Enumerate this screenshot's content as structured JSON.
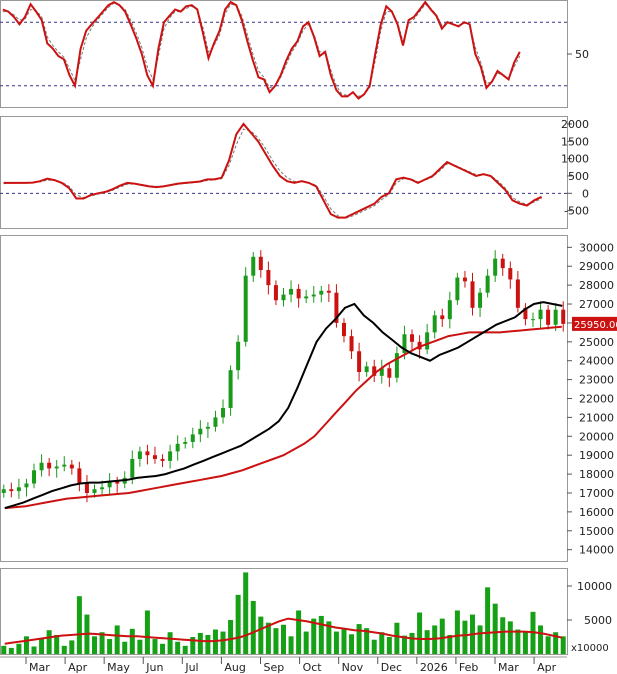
{
  "chart_data": [
    {
      "type": "line",
      "panel": "stochastic-oscillator",
      "ytick_labels": [
        "50"
      ],
      "reference_levels": [
        80,
        20
      ],
      "ylim": [
        0,
        100
      ],
      "series": [
        {
          "color": "#cc1111",
          "values": [
            92,
            90,
            85,
            78,
            85,
            97,
            90,
            82,
            60,
            55,
            48,
            45,
            30,
            20,
            55,
            72,
            78,
            84,
            90,
            96,
            99,
            96,
            90,
            78,
            65,
            50,
            30,
            20,
            55,
            80,
            86,
            92,
            90,
            95,
            96,
            92,
            70,
            46,
            60,
            72,
            92,
            99,
            96,
            82,
            62,
            44,
            28,
            26,
            14,
            20,
            30,
            44,
            55,
            62,
            76,
            80,
            66,
            48,
            52,
            30,
            16,
            10,
            10,
            14,
            8,
            12,
            20,
            50,
            78,
            95,
            90,
            78,
            58,
            82,
            85,
            92,
            99,
            92,
            86,
            74,
            80,
            78,
            76,
            80,
            78,
            50,
            38,
            18,
            24,
            34,
            30,
            26,
            42,
            52
          ]
        },
        {
          "color": "#777777",
          "values": [
            90,
            90,
            87,
            82,
            83,
            92,
            91,
            85,
            66,
            58,
            52,
            47,
            36,
            25,
            45,
            65,
            75,
            82,
            88,
            94,
            98,
            96,
            92,
            82,
            70,
            56,
            38,
            26,
            48,
            74,
            84,
            90,
            90,
            93,
            95,
            92,
            75,
            52,
            58,
            68,
            88,
            97,
            96,
            86,
            68,
            50,
            34,
            28,
            18,
            20,
            28,
            40,
            52,
            60,
            72,
            78,
            68,
            52,
            52,
            35,
            20,
            12,
            11,
            13,
            10,
            12,
            18,
            44,
            72,
            90,
            90,
            80,
            62,
            78,
            83,
            90,
            97,
            93,
            87,
            77,
            80,
            78,
            77,
            79,
            78,
            56,
            42,
            22,
            24,
            32,
            30,
            27,
            38,
            48
          ]
        }
      ]
    },
    {
      "type": "line",
      "panel": "macd",
      "yticks": [
        2000,
        1500,
        1000,
        500,
        0,
        -500
      ],
      "ylim": [
        -1000,
        2200
      ],
      "series": [
        {
          "color": "#cc1111",
          "values": [
            300,
            300,
            300,
            300,
            310,
            350,
            420,
            380,
            300,
            150,
            -150,
            -150,
            -50,
            0,
            40,
            120,
            220,
            300,
            280,
            240,
            200,
            180,
            200,
            240,
            280,
            300,
            320,
            340,
            400,
            400,
            450,
            950,
            1700,
            2000,
            1750,
            1500,
            1150,
            800,
            500,
            350,
            300,
            350,
            300,
            200,
            -200,
            -600,
            -700,
            -700,
            -600,
            -500,
            -400,
            -300,
            -100,
            0,
            400,
            450,
            400,
            300,
            400,
            500,
            700,
            900,
            800,
            700,
            600,
            500,
            550,
            500,
            300,
            100,
            -200,
            -300,
            -350,
            -200,
            -100
          ]
        },
        {
          "color": "#777777",
          "values": [
            280,
            290,
            295,
            298,
            305,
            330,
            380,
            370,
            320,
            200,
            -50,
            -120,
            -80,
            -20,
            20,
            90,
            180,
            260,
            270,
            250,
            220,
            200,
            205,
            230,
            260,
            285,
            305,
            325,
            370,
            390,
            420,
            800,
            1400,
            1850,
            1800,
            1600,
            1300,
            950,
            650,
            450,
            340,
            340,
            310,
            230,
            -80,
            -450,
            -650,
            -720,
            -650,
            -560,
            -460,
            -360,
            -180,
            -40,
            300,
            420,
            420,
            330,
            380,
            470,
            650,
            850,
            820,
            720,
            630,
            540,
            540,
            510,
            360,
            150,
            -120,
            -250,
            -320,
            -250,
            -150
          ]
        }
      ]
    },
    {
      "type": "candlestick",
      "panel": "price",
      "yticks": [
        30000,
        29000,
        28000,
        27000,
        26000,
        25000,
        24000,
        23000,
        22000,
        21000,
        20000,
        19000,
        18000,
        17000,
        16000,
        15000,
        14000
      ],
      "ylim": [
        13400,
        30600
      ],
      "last_price_label": "25950.00",
      "last_price": 25950,
      "close": [
        17200,
        17100,
        17300,
        17500,
        18200,
        18600,
        18300,
        18400,
        18500,
        18300,
        17500,
        17000,
        17200,
        17300,
        17600,
        17500,
        17800,
        18800,
        19200,
        19000,
        18800,
        18700,
        19200,
        19600,
        19700,
        20100,
        20400,
        20500,
        21000,
        21500,
        23500,
        25000,
        28500,
        29500,
        28800,
        28000,
        27200,
        27500,
        27800,
        27300,
        27400,
        27500,
        27700,
        27600,
        26000,
        25300,
        24500,
        23400,
        23700,
        23200,
        23600,
        23100,
        24400,
        25400,
        25000,
        24600,
        25500,
        26400,
        26200,
        27200,
        28400,
        28200,
        26800,
        27600,
        28500,
        29400,
        28900,
        28300,
        26800,
        26200,
        26200,
        26700,
        25900,
        26700,
        25950
      ],
      "ma_short": {
        "color": "#000000",
        "values": [
          16200,
          16350,
          16500,
          16700,
          16900,
          17100,
          17250,
          17400,
          17500,
          17550,
          17550,
          17600,
          17650,
          17700,
          17800,
          17850,
          17900,
          18000,
          18150,
          18300,
          18500,
          18700,
          18900,
          19100,
          19300,
          19500,
          19800,
          20100,
          20400,
          20800,
          21500,
          22600,
          23800,
          25000,
          25700,
          26200,
          26800,
          27000,
          26400,
          26000,
          25500,
          25100,
          24700,
          24400,
          24200,
          24000,
          24300,
          24500,
          24700,
          25000,
          25300,
          25600,
          25900,
          26100,
          26300,
          26700,
          27000,
          27100,
          27000,
          26900
        ]
      },
      "ma_long": {
        "color": "#cc1111",
        "values": [
          16200,
          16250,
          16300,
          16400,
          16500,
          16600,
          16700,
          16750,
          16800,
          16850,
          16900,
          16950,
          17000,
          17100,
          17200,
          17300,
          17400,
          17500,
          17600,
          17700,
          17800,
          17900,
          18050,
          18200,
          18400,
          18600,
          18800,
          19000,
          19300,
          19600,
          20000,
          20600,
          21200,
          21800,
          22400,
          22900,
          23400,
          23800,
          24100,
          24400,
          24700,
          24900,
          25100,
          25300,
          25400,
          25500,
          25500,
          25500,
          25500,
          25550,
          25600,
          25650,
          25700,
          25750,
          25800
        ]
      },
      "intervals": 75
    },
    {
      "type": "bar",
      "panel": "volume",
      "yticks": [
        10000,
        5000
      ],
      "unit_label": "x10000",
      "ylim": [
        0,
        12500
      ],
      "values": [
        1200,
        900,
        1500,
        2600,
        1100,
        2200,
        3500,
        2800,
        1200,
        2000,
        8500,
        5800,
        2600,
        3200,
        2200,
        4200,
        1800,
        3700,
        2100,
        6400,
        2200,
        1500,
        3200,
        1800,
        1200,
        2500,
        3100,
        2800,
        3600,
        3300,
        5000,
        8700,
        12000,
        7800,
        5500,
        4600,
        3800,
        4300,
        2600,
        6400,
        3300,
        5200,
        5600,
        4800,
        3300,
        3600,
        2900,
        4400,
        3800,
        2100,
        3200,
        2500,
        4600,
        2700,
        3100,
        6100,
        3500,
        4200,
        5200,
        2800,
        6400,
        4900,
        5800,
        4200,
        9800,
        7400,
        5400,
        4800,
        3600,
        3200,
        6200,
        4200,
        2600,
        3200,
        2600
      ],
      "ma": {
        "color": "#cc1111",
        "values": [
          1500,
          1700,
          1900,
          2100,
          2300,
          2500,
          2700,
          2800,
          2900,
          3000,
          2900,
          2800,
          2700,
          2600,
          2600,
          2500,
          2400,
          2300,
          2200,
          2100,
          2000,
          1900,
          1900,
          2000,
          2200,
          2500,
          3000,
          3600,
          4200,
          4800,
          5200,
          5000,
          4800,
          4500,
          4200,
          3900,
          3700,
          3500,
          3400,
          3200,
          3000,
          2700,
          2500,
          2300,
          2200,
          2200,
          2300,
          2500,
          2700,
          2800,
          3000,
          3100,
          3200,
          3300,
          3300,
          3300,
          3200,
          3000,
          2700,
          2400
        ]
      }
    }
  ],
  "x_axis": {
    "labels": [
      "Mar",
      "Apr",
      "May",
      "Jun",
      "Jul",
      "Aug",
      "Sep",
      "Oct",
      "Nov",
      "Dec",
      "2026",
      "Feb",
      "Mar",
      "Apr"
    ]
  }
}
